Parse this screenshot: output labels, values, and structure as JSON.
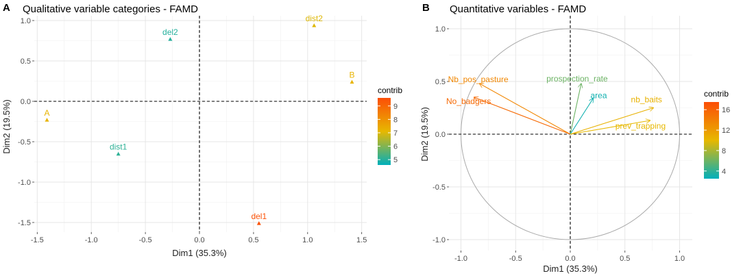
{
  "chart_data": [
    {
      "panel": "A",
      "type": "scatter",
      "title": "Qualitative variable categories - FAMD",
      "xlabel": "Dim1 (35.3%)",
      "ylabel": "Dim2 (19.5%)",
      "xlim": [
        -1.5,
        1.55
      ],
      "ylim": [
        -1.58,
        1.02
      ],
      "xticks": [
        -1.5,
        -1.0,
        -0.5,
        0.0,
        0.5,
        1.0,
        1.5
      ],
      "xtick_labels": [
        "-1.5",
        "-1.0",
        "-0.5",
        "0.0",
        "0.5",
        "1.0",
        "1.5"
      ],
      "yticks": [
        1.0,
        0.5,
        0.0,
        -0.5,
        -1.0,
        -1.5
      ],
      "ytick_labels": [
        "1.0",
        "0.5",
        "0.0",
        "-0.5",
        "-1.0",
        "-1.5"
      ],
      "points": [
        {
          "label": "dist2",
          "x": 1.06,
          "y": 0.94,
          "contrib": 7.0
        },
        {
          "label": "del2",
          "x": -0.27,
          "y": 0.77,
          "contrib": 5.0
        },
        {
          "label": "B",
          "x": 1.41,
          "y": 0.24,
          "contrib": 7.2
        },
        {
          "label": "A",
          "x": -1.41,
          "y": -0.23,
          "contrib": 7.2
        },
        {
          "label": "dist1",
          "x": -0.75,
          "y": -0.65,
          "contrib": 5.1
        },
        {
          "label": "del1",
          "x": 0.55,
          "y": -1.51,
          "contrib": 9.5
        }
      ],
      "legend": {
        "title": "contrib",
        "min": 4.6,
        "max": 9.6,
        "ticks": [
          9,
          8,
          7,
          6,
          5
        ],
        "tick_labels": [
          "9",
          "8",
          "7",
          "6",
          "5"
        ],
        "position": "right"
      }
    },
    {
      "panel": "B",
      "type": "line",
      "title": "Quantitative variables - FAMD",
      "xlabel": "Dim1 (35.3%)",
      "ylabel": "Dim2 (19.5%)",
      "xlim": [
        -1.1,
        1.1
      ],
      "ylim": [
        -1.1,
        1.1
      ],
      "xticks": [
        -1.0,
        -0.5,
        0.0,
        0.5,
        1.0
      ],
      "xtick_labels": [
        "-1.0",
        "-0.5",
        "0.0",
        "0.5",
        "1.0"
      ],
      "yticks": [
        1.0,
        0.5,
        0.0,
        -0.5,
        -1.0
      ],
      "ytick_labels": [
        "1.0",
        "0.5",
        "0.0",
        "-0.5",
        "-1.0"
      ],
      "arrows": [
        {
          "label": "Nb_pos_pasture",
          "x": -0.83,
          "y": 0.48,
          "contrib": 13.5
        },
        {
          "label": "No_badgers",
          "x": -0.88,
          "y": 0.35,
          "contrib": 15.5
        },
        {
          "label": "prospection_rate",
          "x": 0.1,
          "y": 0.48,
          "contrib": 6.0
        },
        {
          "label": "area",
          "x": 0.21,
          "y": 0.34,
          "contrib": 3.0
        },
        {
          "label": "nb_baits",
          "x": 0.76,
          "y": 0.25,
          "contrib": 10.5
        },
        {
          "label": "prev_trapping",
          "x": 0.73,
          "y": 0.13,
          "contrib": 10.0
        }
      ],
      "legend": {
        "title": "contrib",
        "min": 2.5,
        "max": 17.5,
        "ticks": [
          16,
          12,
          8,
          4
        ],
        "tick_labels": [
          "16",
          "12",
          "8",
          "4"
        ],
        "position": "right"
      }
    }
  ]
}
